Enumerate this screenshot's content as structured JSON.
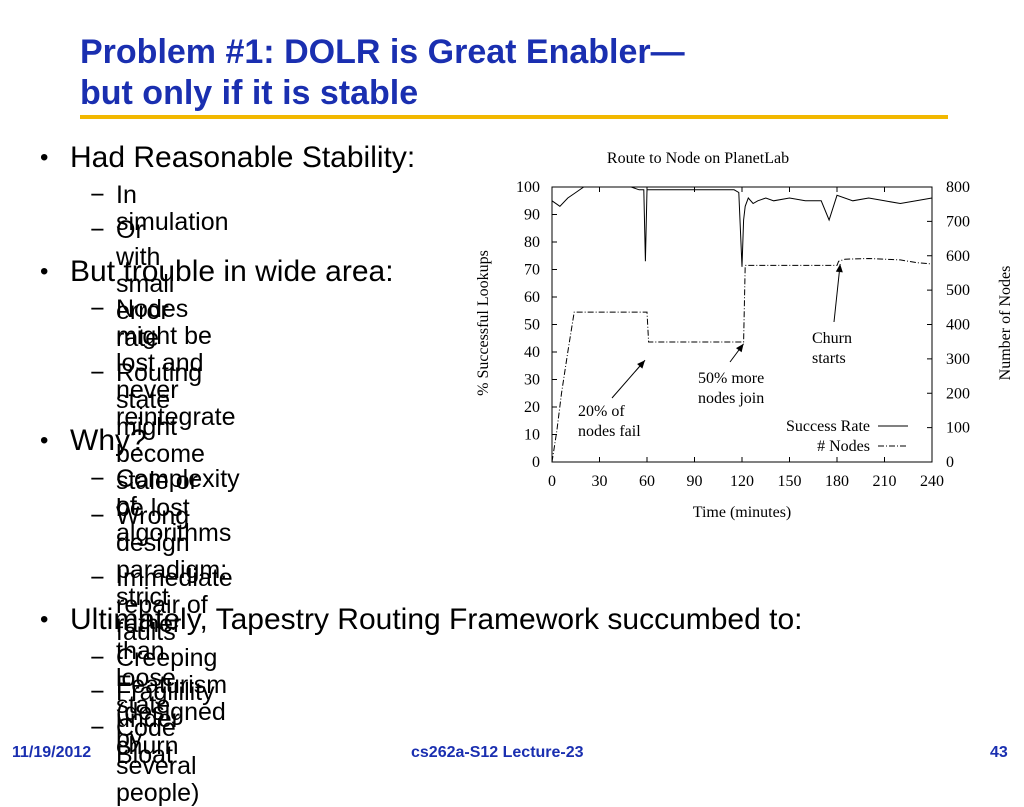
{
  "slide": {
    "title_line1": "Problem #1: DOLR is Great Enabler—",
    "title_line2": "but only if it is stable",
    "bullet_symbol": "•",
    "dash_symbol": "−",
    "bullets": [
      {
        "text": "Had Reasonable Stability:",
        "subs": [
          "In simulation",
          "Or with small error rate"
        ]
      },
      {
        "text": "But trouble in wide area:",
        "subs": [
          "Nodes might be lost and never reintegrate",
          "Routing state might become stale or be lost"
        ]
      },
      {
        "text": "Why?",
        "subs": [
          "Complexity of algorithms",
          "Wrong design paradigm: strict rather than loose state",
          "Immediate repair of faults"
        ]
      },
      {
        "text": "Ultimately, Tapestry Routing Framework succumbed to:",
        "subs": [
          "Creeping Featurism (designed by several people)",
          "Fragilility under churn",
          "Code Bloat"
        ]
      }
    ],
    "sub_lines": {
      "nodes_lost": [
        "Nodes might be lost and",
        "never reintegrate"
      ],
      "routing_state": [
        "Routing state might",
        "become stale or be lost"
      ],
      "wrong_design": [
        "Wrong design paradigm:",
        "strict rather than loose state"
      ]
    }
  },
  "footer": {
    "date": "11/19/2012",
    "course": "cs262a-S12 Lecture-23",
    "page": "43"
  },
  "colors": {
    "title": "#1a2fb0",
    "rule": "#f2b800",
    "footer": "#1a2fb0"
  },
  "chart_data": {
    "type": "line",
    "title": "Route to Node on PlanetLab",
    "xlabel": "Time (minutes)",
    "ylabel_left": "% Successful Lookups",
    "ylabel_right": "Number of Nodes",
    "xlim": [
      0,
      240
    ],
    "ylim_left": [
      0,
      100
    ],
    "ylim_right": [
      0,
      800
    ],
    "x_ticks": [
      0,
      30,
      60,
      90,
      120,
      150,
      180,
      210,
      240
    ],
    "y_ticks_left": [
      0,
      10,
      20,
      30,
      40,
      50,
      60,
      70,
      80,
      90,
      100
    ],
    "y_ticks_right": [
      0,
      100,
      200,
      300,
      400,
      500,
      600,
      700,
      800
    ],
    "series": [
      {
        "name": "Success Rate",
        "axis": "left",
        "x": [
          0,
          5,
          10,
          15,
          20,
          30,
          40,
          50,
          55,
          58,
          59,
          60,
          61,
          65,
          70,
          80,
          90,
          100,
          110,
          115,
          118,
          120,
          121,
          122,
          124,
          127,
          130,
          135,
          140,
          150,
          160,
          170,
          175,
          180,
          190,
          200,
          210,
          220,
          230,
          240
        ],
        "y": [
          95,
          93,
          96,
          98,
          100,
          100,
          100,
          100,
          99,
          99,
          73,
          99,
          99,
          99,
          99,
          99,
          99,
          99,
          99,
          99,
          98,
          71,
          88,
          93,
          96,
          94,
          95,
          96,
          95,
          96,
          95,
          95,
          88,
          97,
          95,
          96,
          95,
          94,
          95,
          96
        ]
      },
      {
        "name": "# Nodes",
        "axis": "right",
        "x": [
          0,
          3,
          6,
          10,
          14,
          20,
          30,
          40,
          50,
          59,
          60,
          61,
          80,
          100,
          120,
          121,
          122,
          140,
          160,
          180,
          181,
          185,
          200,
          210,
          220,
          230,
          240
        ],
        "y": [
          0,
          90,
          200,
          320,
          436,
          436,
          436,
          436,
          436,
          436,
          436,
          349,
          349,
          349,
          349,
          349,
          572,
          572,
          572,
          572,
          584,
          590,
          592,
          590,
          588,
          580,
          576
        ]
      }
    ],
    "annotations": [
      {
        "lines": [
          "20% of",
          "nodes fail"
        ],
        "x": 60,
        "y_left": 37
      },
      {
        "lines": [
          "50% more",
          "nodes join"
        ],
        "x": 121,
        "y_left": 43
      },
      {
        "lines": [
          "Churn",
          "starts"
        ],
        "x": 182,
        "y_left": 72
      }
    ],
    "legend": {
      "placement": "bottom-right",
      "entries": [
        "Success Rate",
        "# Nodes"
      ]
    }
  }
}
